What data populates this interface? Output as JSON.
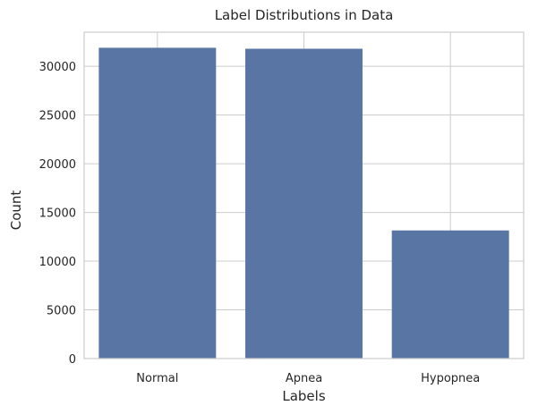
{
  "chart_data": {
    "type": "bar",
    "title": "Label Distributions in Data",
    "xlabel": "Labels",
    "ylabel": "Count",
    "categories": [
      "Normal",
      "Apnea",
      "Hypopnea"
    ],
    "values": [
      31900,
      31800,
      13150
    ],
    "ylim": [
      0,
      33500
    ],
    "yticks": [
      0,
      5000,
      10000,
      15000,
      20000,
      25000,
      30000
    ],
    "grid": true,
    "legend": "none",
    "colors": {
      "bar": "#5975a4",
      "grid": "#cccccc",
      "spine": "#cccccc",
      "text": "#262626",
      "background": "#ffffff"
    }
  }
}
